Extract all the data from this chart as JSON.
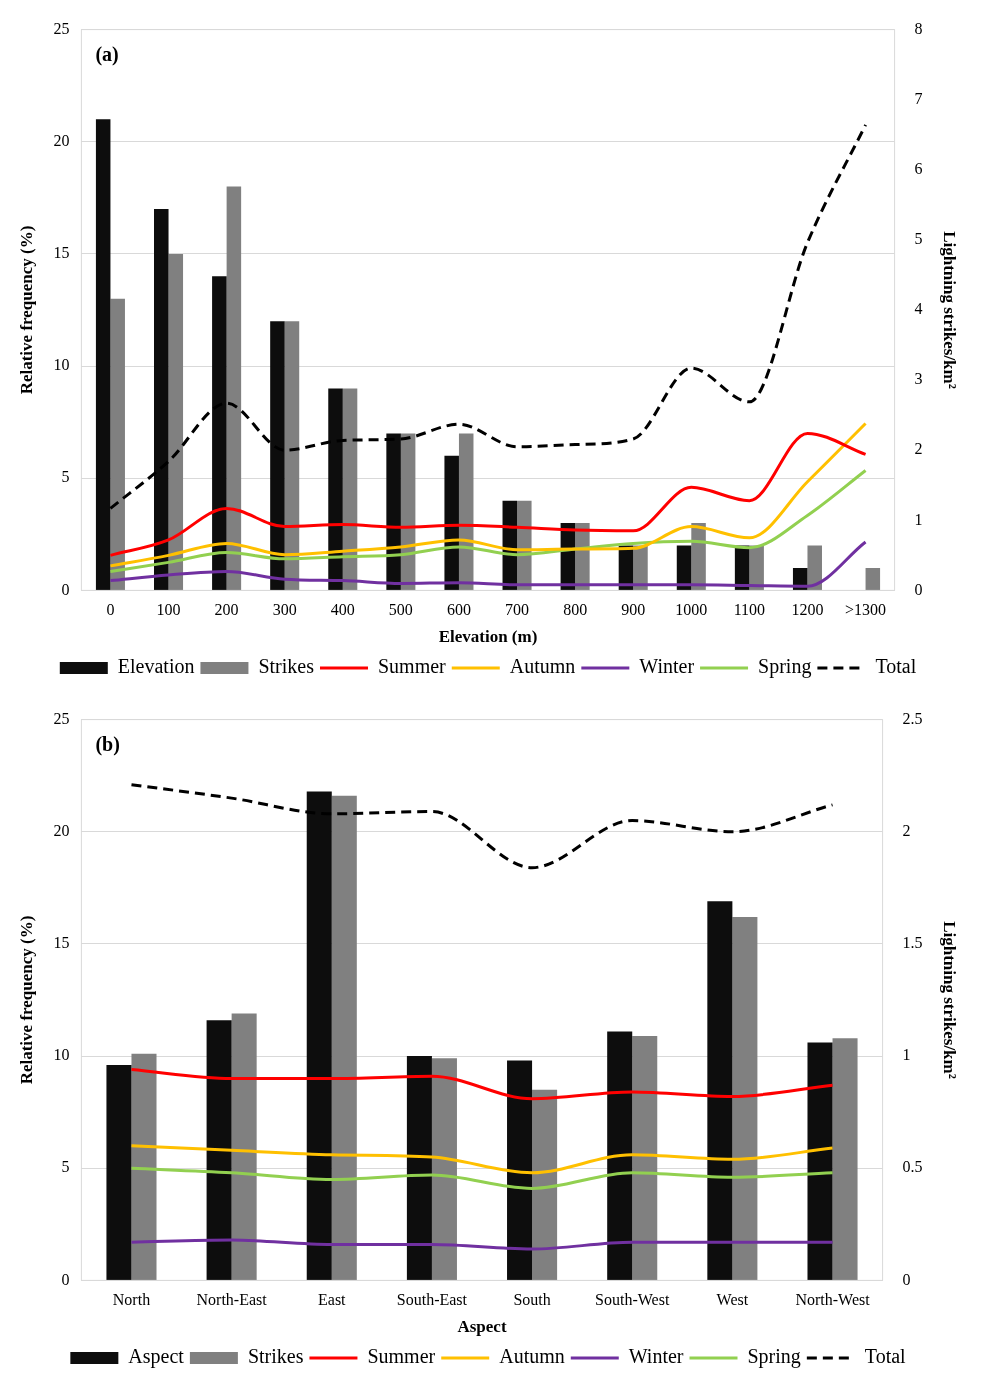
{
  "chart_data": [
    {
      "type": "bar",
      "xlabel": "Elevation (m)",
      "ylabel": "Relative frequency (%)",
      "y2label": "Lightning strikes/km²",
      "annotations": [
        "(a)"
      ],
      "categories": [
        "0",
        "100",
        "200",
        "300",
        "400",
        "500",
        "600",
        "700",
        "800",
        "900",
        "1000",
        "1100",
        "1200",
        ">1300"
      ],
      "ylim": [
        0,
        25
      ],
      "yticks": [
        0,
        5,
        10,
        15,
        20,
        25
      ],
      "y2lim": [
        0,
        8
      ],
      "y2ticks": [
        0,
        1,
        2,
        3,
        4,
        5,
        6,
        7,
        8
      ],
      "grid": "y",
      "legend": "bottom",
      "marker": "none",
      "series": [
        {
          "name": "Elevation",
          "color": "#0d0d0d",
          "values": [
            21,
            17,
            14,
            12,
            9,
            7,
            6,
            4,
            3,
            2,
            2,
            2,
            1,
            null
          ]
        },
        {
          "name": "Strikes",
          "color": "#808080",
          "values": [
            13,
            15,
            18,
            12,
            9,
            7,
            7,
            4,
            3,
            2,
            3,
            2,
            2,
            1
          ]
        },
        {
          "name": "Summer",
          "type": "line",
          "axis": "y2",
          "line_style": "solid",
          "color": "#ff0000",
          "values": [
            0.5,
            0.72,
            1.17,
            0.91,
            0.94,
            0.9,
            0.93,
            0.9,
            0.86,
            0.85,
            1.47,
            1.28,
            2.24,
            1.94
          ]
        },
        {
          "name": "Autumn",
          "type": "line",
          "axis": "y2",
          "line_style": "solid",
          "color": "#ffc000",
          "values": [
            0.35,
            0.5,
            0.67,
            0.51,
            0.56,
            0.62,
            0.72,
            0.58,
            0.59,
            0.6,
            0.91,
            0.75,
            1.55,
            2.38
          ]
        },
        {
          "name": "Winter",
          "type": "line",
          "axis": "y2",
          "line_style": "solid",
          "color": "#7030a0",
          "values": [
            0.14,
            0.22,
            0.27,
            0.16,
            0.14,
            0.1,
            0.11,
            0.08,
            0.08,
            0.08,
            0.08,
            0.07,
            0.06,
            0.69
          ]
        },
        {
          "name": "Spring",
          "type": "line",
          "axis": "y2",
          "line_style": "solid",
          "color": "#92d050",
          "values": [
            0.27,
            0.4,
            0.54,
            0.45,
            0.48,
            0.51,
            0.62,
            0.51,
            0.59,
            0.67,
            0.7,
            0.61,
            1.07,
            1.71
          ]
        },
        {
          "name": "Total",
          "type": "line",
          "axis": "y2",
          "line_style": "dashed",
          "color": "#000000",
          "values": [
            1.17,
            1.84,
            2.67,
            2.0,
            2.14,
            2.16,
            2.37,
            2.05,
            2.08,
            2.16,
            3.17,
            2.69,
            4.96,
            6.64
          ]
        }
      ]
    },
    {
      "type": "bar",
      "xlabel": "Aspect",
      "ylabel": "Relative frequency (%)",
      "y2label": "Lightning strikes/km²",
      "annotations": [
        "(b)"
      ],
      "categories": [
        "North",
        "North-East",
        "East",
        "South-East",
        "South",
        "South-West",
        "West",
        "North-West"
      ],
      "ylim": [
        0,
        25
      ],
      "yticks": [
        0,
        5,
        10,
        15,
        20,
        25
      ],
      "y2lim": [
        0,
        2.5
      ],
      "y2ticks": [
        0,
        0.5,
        1,
        1.5,
        2,
        2.5
      ],
      "grid": "y",
      "legend": "bottom",
      "marker": "none",
      "series": [
        {
          "name": "Aspect",
          "color": "#0d0d0d",
          "values": [
            9.6,
            11.6,
            21.8,
            10.0,
            9.8,
            11.1,
            16.9,
            10.6
          ]
        },
        {
          "name": "Strikes",
          "color": "#808080",
          "values": [
            10.1,
            11.9,
            21.6,
            9.9,
            8.5,
            10.9,
            16.2,
            10.8
          ]
        },
        {
          "name": "Summer",
          "type": "line",
          "axis": "y2",
          "line_style": "solid",
          "color": "#ff0000",
          "values": [
            0.94,
            0.9,
            0.9,
            0.91,
            0.81,
            0.84,
            0.82,
            0.87
          ]
        },
        {
          "name": "Autumn",
          "type": "line",
          "axis": "y2",
          "line_style": "solid",
          "color": "#ffc000",
          "values": [
            0.6,
            0.58,
            0.56,
            0.55,
            0.48,
            0.56,
            0.54,
            0.59
          ]
        },
        {
          "name": "Winter",
          "type": "line",
          "axis": "y2",
          "line_style": "solid",
          "color": "#7030a0",
          "values": [
            0.17,
            0.18,
            0.16,
            0.16,
            0.14,
            0.17,
            0.17,
            0.17
          ]
        },
        {
          "name": "Spring",
          "type": "line",
          "axis": "y2",
          "line_style": "solid",
          "color": "#92d050",
          "values": [
            0.5,
            0.48,
            0.45,
            0.47,
            0.41,
            0.48,
            0.46,
            0.48
          ]
        },
        {
          "name": "Total",
          "type": "line",
          "axis": "y2",
          "line_style": "dashed",
          "color": "#000000",
          "values": [
            2.21,
            2.15,
            2.08,
            2.09,
            1.84,
            2.05,
            2.0,
            2.12
          ]
        }
      ]
    }
  ]
}
